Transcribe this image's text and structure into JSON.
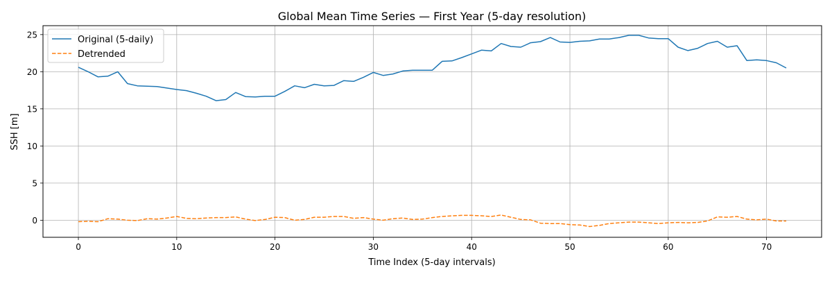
{
  "chart_data": {
    "type": "line",
    "title": "Global Mean Time Series — First Year (5-day resolution)",
    "xlabel": "Time Index (5-day intervals)",
    "ylabel": "SSH [m]",
    "xlim": [
      -3.6,
      75.6
    ],
    "ylim": [
      -2.3,
      26.2
    ],
    "xticks": [
      0,
      10,
      20,
      30,
      40,
      50,
      60,
      70
    ],
    "yticks": [
      0,
      5,
      10,
      15,
      20,
      25
    ],
    "grid": true,
    "legend_position": "top-left",
    "colors": {
      "original": "#1f77b4",
      "detrended": "#ff7f0e"
    },
    "series": [
      {
        "name": "Original (5-daily)",
        "style": "solid",
        "x": [
          0,
          1,
          2,
          3,
          4,
          5,
          6,
          7,
          8,
          9,
          10,
          11,
          12,
          13,
          14,
          15,
          16,
          17,
          18,
          19,
          20,
          21,
          22,
          23,
          24,
          25,
          26,
          27,
          28,
          29,
          30,
          31,
          32,
          33,
          34,
          35,
          36,
          37,
          38,
          39,
          40,
          41,
          42,
          43,
          44,
          45,
          46,
          47,
          48,
          49,
          50,
          51,
          52,
          53,
          54,
          55,
          56,
          57,
          58,
          59,
          60,
          61,
          62,
          63,
          64,
          65,
          66,
          67,
          68,
          69,
          70,
          71,
          72
        ],
        "values": [
          20.6,
          20.0,
          19.3,
          19.4,
          20.0,
          18.4,
          18.1,
          18.05,
          18.0,
          17.8,
          17.6,
          17.45,
          17.1,
          16.7,
          16.1,
          16.25,
          17.2,
          16.65,
          16.6,
          16.7,
          16.7,
          17.35,
          18.1,
          17.85,
          18.3,
          18.1,
          18.15,
          18.8,
          18.7,
          19.25,
          19.9,
          19.5,
          19.7,
          20.1,
          20.2,
          20.2,
          20.2,
          21.4,
          21.45,
          21.9,
          22.4,
          22.9,
          22.8,
          23.8,
          23.4,
          23.3,
          23.9,
          24.05,
          24.6,
          24.0,
          23.95,
          24.1,
          24.15,
          24.4,
          24.4,
          24.6,
          24.9,
          24.9,
          24.55,
          24.45,
          24.45,
          23.3,
          22.85,
          23.15,
          23.8,
          24.1,
          23.3,
          23.5,
          21.5,
          21.6,
          21.5,
          21.2,
          20.5
        ]
      },
      {
        "name": "Detrended",
        "style": "dashed",
        "x": [
          0,
          1,
          2,
          3,
          4,
          5,
          6,
          7,
          8,
          9,
          10,
          11,
          12,
          13,
          14,
          15,
          16,
          17,
          18,
          19,
          20,
          21,
          22,
          23,
          24,
          25,
          26,
          27,
          28,
          29,
          30,
          31,
          32,
          33,
          34,
          35,
          36,
          37,
          38,
          39,
          40,
          41,
          42,
          43,
          44,
          45,
          46,
          47,
          48,
          49,
          50,
          51,
          52,
          53,
          54,
          55,
          56,
          57,
          58,
          59,
          60,
          61,
          62,
          63,
          64,
          65,
          66,
          67,
          68,
          69,
          70,
          71,
          72
        ],
        "values": [
          -0.2,
          -0.15,
          -0.2,
          0.2,
          0.15,
          0.0,
          -0.05,
          0.2,
          0.15,
          0.3,
          0.5,
          0.25,
          0.2,
          0.3,
          0.35,
          0.35,
          0.45,
          0.15,
          -0.05,
          0.1,
          0.4,
          0.35,
          0.0,
          0.1,
          0.4,
          0.4,
          0.5,
          0.5,
          0.25,
          0.35,
          0.15,
          0.0,
          0.2,
          0.3,
          0.1,
          0.15,
          0.35,
          0.5,
          0.6,
          0.65,
          0.65,
          0.6,
          0.5,
          0.7,
          0.4,
          0.1,
          0.05,
          -0.4,
          -0.45,
          -0.45,
          -0.6,
          -0.65,
          -0.85,
          -0.7,
          -0.45,
          -0.35,
          -0.25,
          -0.25,
          -0.35,
          -0.45,
          -0.35,
          -0.3,
          -0.35,
          -0.3,
          -0.1,
          0.45,
          0.4,
          0.5,
          0.15,
          0.05,
          0.15,
          -0.1,
          -0.1
        ]
      }
    ]
  }
}
